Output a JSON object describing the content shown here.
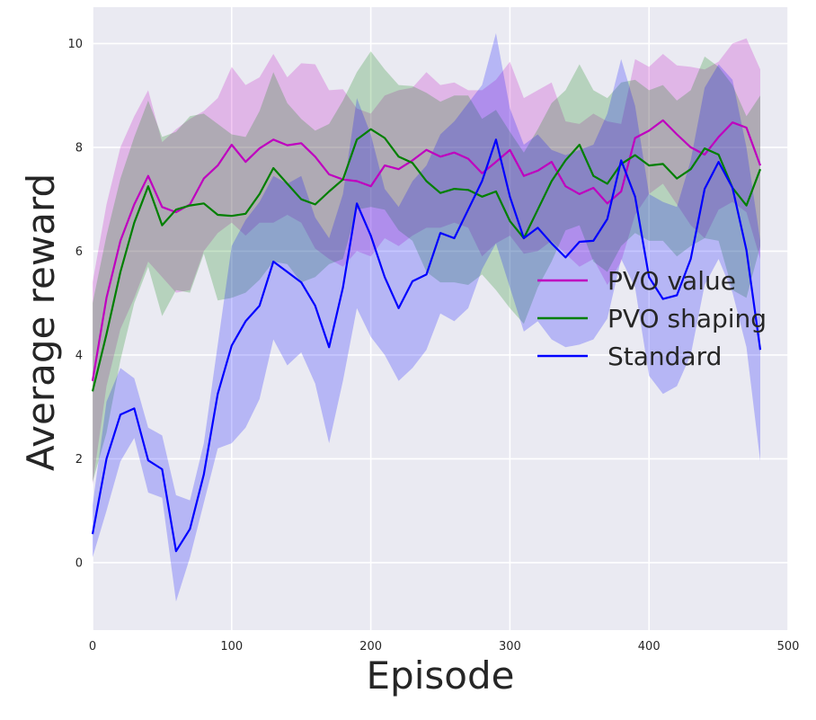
{
  "chart_data": {
    "type": "line",
    "title": "",
    "xlabel": "Episode",
    "ylabel": "Average reward",
    "xlim": [
      0,
      500
    ],
    "ylim": [
      -1.3,
      10.7
    ],
    "xticks": [
      0,
      100,
      200,
      300,
      400,
      500
    ],
    "yticks": [
      0,
      2,
      4,
      6,
      8,
      10
    ],
    "grid": true,
    "background": "#eaeaf2",
    "legend_position": "center-right",
    "x": [
      0,
      10,
      20,
      30,
      40,
      50,
      60,
      70,
      80,
      90,
      100,
      110,
      120,
      130,
      140,
      150,
      160,
      170,
      180,
      190,
      200,
      210,
      220,
      230,
      240,
      250,
      260,
      270,
      280,
      290,
      300,
      310,
      320,
      330,
      340,
      350,
      360,
      370,
      380,
      390,
      400,
      410,
      420,
      430,
      440,
      450,
      460,
      470,
      480
    ],
    "series": [
      {
        "name": "PVO value",
        "color": "#bf00bf",
        "mean": [
          3.5,
          5.1,
          6.2,
          6.9,
          7.45,
          6.85,
          6.75,
          6.9,
          7.4,
          7.65,
          8.05,
          7.72,
          7.98,
          8.15,
          8.04,
          8.08,
          7.82,
          7.48,
          7.38,
          7.35,
          7.25,
          7.65,
          7.58,
          7.75,
          7.95,
          7.82,
          7.9,
          7.78,
          7.5,
          7.72,
          7.95,
          7.45,
          7.55,
          7.72,
          7.25,
          7.1,
          7.22,
          6.92,
          7.15,
          8.18,
          8.32,
          8.52,
          8.25,
          8.0,
          7.86,
          8.2,
          8.48,
          8.38,
          7.65
        ],
        "upper": [
          5.4,
          6.9,
          8.0,
          8.6,
          9.1,
          8.1,
          8.35,
          8.55,
          8.7,
          8.95,
          9.55,
          9.2,
          9.35,
          9.8,
          9.35,
          9.62,
          9.6,
          9.1,
          9.12,
          8.75,
          8.65,
          9.0,
          9.1,
          9.15,
          9.45,
          9.2,
          9.25,
          9.1,
          9.1,
          9.3,
          9.65,
          8.95,
          9.1,
          9.25,
          8.5,
          8.45,
          8.65,
          8.5,
          8.45,
          9.7,
          9.55,
          9.8,
          9.58,
          9.55,
          9.5,
          9.65,
          10.0,
          10.1,
          9.5
        ],
        "lower": [
          1.5,
          3.4,
          4.5,
          5.1,
          5.8,
          5.5,
          5.2,
          5.25,
          6.0,
          6.35,
          6.55,
          6.3,
          6.55,
          6.55,
          6.7,
          6.55,
          6.05,
          5.85,
          5.7,
          6.0,
          5.9,
          6.25,
          6.1,
          6.3,
          6.45,
          6.45,
          6.55,
          6.45,
          5.9,
          6.15,
          6.3,
          5.95,
          6.0,
          6.2,
          5.95,
          5.7,
          5.85,
          5.35,
          5.8,
          6.7,
          7.1,
          7.3,
          6.9,
          6.5,
          6.25,
          6.8,
          6.95,
          6.75,
          5.85
        ]
      },
      {
        "name": "PVO shaping",
        "color": "#007f00",
        "mean": [
          3.3,
          4.4,
          5.6,
          6.55,
          7.25,
          6.5,
          6.8,
          6.88,
          6.92,
          6.7,
          6.68,
          6.72,
          7.1,
          7.6,
          7.3,
          7.0,
          6.9,
          7.15,
          7.38,
          8.15,
          8.35,
          8.18,
          7.82,
          7.7,
          7.35,
          7.12,
          7.2,
          7.18,
          7.05,
          7.15,
          6.58,
          6.25,
          6.8,
          7.35,
          7.75,
          8.05,
          7.45,
          7.3,
          7.68,
          7.85,
          7.65,
          7.68,
          7.4,
          7.58,
          7.98,
          7.86,
          7.22,
          6.88,
          7.58
        ],
        "upper": [
          5.0,
          6.3,
          7.4,
          8.2,
          8.9,
          8.2,
          8.3,
          8.6,
          8.65,
          8.45,
          8.25,
          8.2,
          8.7,
          9.45,
          8.85,
          8.55,
          8.32,
          8.45,
          8.9,
          9.45,
          9.85,
          9.5,
          9.2,
          9.18,
          9.05,
          8.88,
          9.0,
          9.0,
          8.55,
          8.72,
          8.3,
          7.9,
          8.35,
          8.85,
          9.1,
          9.6,
          9.1,
          8.95,
          9.25,
          9.3,
          9.1,
          9.2,
          8.9,
          9.1,
          9.75,
          9.55,
          9.2,
          8.6,
          9.0
        ],
        "lower": [
          1.55,
          2.5,
          3.9,
          5.0,
          5.7,
          4.75,
          5.25,
          5.2,
          5.95,
          5.05,
          5.1,
          5.2,
          5.45,
          5.8,
          5.75,
          5.4,
          5.5,
          5.75,
          5.85,
          6.8,
          6.85,
          6.8,
          6.4,
          6.2,
          5.6,
          5.4,
          5.4,
          5.35,
          5.55,
          5.25,
          4.9,
          4.6,
          5.3,
          5.8,
          6.4,
          6.5,
          5.8,
          5.6,
          6.1,
          6.35,
          6.2,
          6.2,
          5.9,
          6.1,
          6.25,
          6.2,
          5.25,
          5.1,
          6.1
        ]
      },
      {
        "name": "Standard",
        "color": "#0000ff",
        "mean": [
          0.55,
          2.0,
          2.85,
          2.97,
          1.97,
          1.8,
          0.22,
          0.65,
          1.7,
          3.25,
          4.18,
          4.65,
          4.95,
          5.8,
          5.6,
          5.4,
          4.95,
          4.15,
          5.3,
          6.92,
          6.3,
          5.5,
          4.9,
          5.42,
          5.55,
          6.35,
          6.25,
          6.8,
          7.35,
          8.15,
          7.05,
          6.25,
          6.45,
          6.15,
          5.88,
          6.18,
          6.2,
          6.62,
          7.75,
          7.05,
          5.5,
          5.08,
          5.15,
          5.85,
          7.2,
          7.72,
          7.22,
          6.02,
          4.1
        ],
        "upper": [
          1.1,
          3.1,
          3.75,
          3.55,
          2.6,
          2.45,
          1.3,
          1.2,
          2.3,
          4.2,
          6.1,
          6.6,
          6.95,
          7.45,
          7.3,
          7.45,
          6.65,
          6.25,
          7.1,
          8.95,
          8.25,
          7.2,
          6.85,
          7.35,
          7.65,
          8.25,
          8.5,
          8.85,
          9.2,
          10.2,
          8.75,
          8.05,
          8.25,
          7.95,
          7.85,
          7.95,
          8.05,
          8.65,
          9.7,
          8.8,
          7.1,
          6.95,
          6.85,
          7.75,
          9.15,
          9.6,
          9.3,
          8.0,
          6.2
        ],
        "lower": [
          0.1,
          1.0,
          1.95,
          2.4,
          1.35,
          1.25,
          -0.75,
          0.1,
          1.15,
          2.2,
          2.3,
          2.6,
          3.15,
          4.3,
          3.8,
          4.05,
          3.45,
          2.3,
          3.5,
          4.9,
          4.35,
          4.0,
          3.5,
          3.75,
          4.1,
          4.8,
          4.65,
          4.9,
          5.65,
          6.15,
          5.3,
          4.45,
          4.65,
          4.3,
          4.15,
          4.2,
          4.3,
          4.7,
          5.85,
          5.3,
          3.6,
          3.25,
          3.4,
          4.0,
          5.35,
          5.85,
          5.2,
          4.15,
          1.95
        ]
      }
    ]
  }
}
